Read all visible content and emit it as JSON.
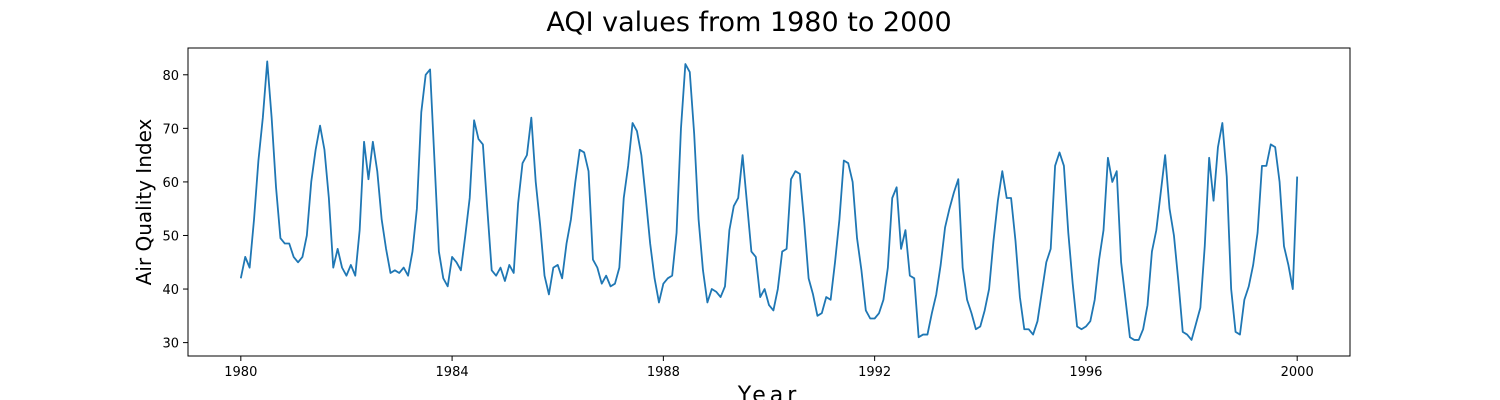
{
  "chart_data": {
    "type": "line",
    "title": "AQI values from 1980 to 2000",
    "xlabel": "Year",
    "ylabel": "Air Quality Index",
    "xlim": [
      1979.0,
      2001.0
    ],
    "ylim": [
      27.5,
      85.0
    ],
    "x_ticks": [
      1980,
      1984,
      1988,
      1992,
      1996,
      2000
    ],
    "y_ticks": [
      30,
      40,
      50,
      60,
      70,
      80
    ],
    "grid": false,
    "legend": "none",
    "line_color": "#1f77b4",
    "series": [
      {
        "x_start": 1980.0,
        "x_step": 0.0833333333,
        "values": [
          42,
          46,
          44,
          53,
          64,
          72,
          82.5,
          72,
          59,
          49.5,
          48.5,
          48.5,
          46,
          45,
          46,
          50,
          60,
          66,
          70.5,
          66,
          57,
          44,
          47.5,
          44,
          42.5,
          44.5,
          42.5,
          51,
          67.5,
          60.5,
          67.5,
          62,
          53,
          47.5,
          43,
          43.5,
          43,
          44,
          42.5,
          47,
          55,
          73,
          80,
          81,
          64,
          47,
          42,
          40.5,
          46,
          45,
          43.5,
          50,
          57,
          71.5,
          68,
          67,
          55,
          43.5,
          42.5,
          44,
          41.5,
          44.5,
          43,
          56,
          63.5,
          65,
          72,
          60,
          52,
          42.5,
          39,
          44,
          44.5,
          42,
          48.5,
          53,
          60,
          66,
          65.5,
          62,
          45.5,
          44,
          41,
          42.5,
          40.5,
          41,
          44,
          57,
          63,
          71,
          69.5,
          65,
          57,
          48.5,
          42,
          37.5,
          41,
          42,
          42.5,
          50.5,
          70,
          82,
          80.5,
          69,
          53,
          43.5,
          37.5,
          40,
          39.5,
          38.5,
          40.5,
          51,
          55.5,
          57,
          65,
          56,
          47,
          46,
          38.5,
          40,
          37,
          36,
          40,
          47,
          47.5,
          60.5,
          62,
          61.5,
          52.5,
          42,
          39,
          35,
          35.5,
          38.5,
          38,
          45,
          53,
          64,
          63.5,
          60,
          49.5,
          43.5,
          36,
          34.5,
          34.5,
          35.5,
          38,
          44,
          57,
          59,
          47.5,
          51,
          42.5,
          42,
          31,
          31.5,
          31.5,
          35.5,
          39,
          44.5,
          51.5,
          55,
          58,
          60.5,
          44,
          38,
          35.5,
          32.5,
          33,
          36,
          40,
          49,
          56.5,
          62,
          57,
          57,
          49,
          38.5,
          32.5,
          32.5,
          31.5,
          34,
          39.5,
          45,
          47.5,
          63,
          65.5,
          63,
          50.5,
          41,
          33,
          32.5,
          33,
          34,
          38,
          45.5,
          51,
          64.5,
          60,
          62,
          45,
          38,
          31,
          30.5,
          30.5,
          32.5,
          37,
          47,
          51,
          58,
          65,
          55,
          50,
          41.5,
          32,
          31.5,
          30.5,
          33.5,
          36.5,
          48,
          64.5,
          56.5,
          66.5,
          71,
          61,
          40,
          32,
          31.5,
          38,
          40.5,
          44.5,
          50.5,
          63,
          63,
          67,
          66.5,
          60,
          48,
          44.5,
          40,
          61
        ]
      }
    ]
  }
}
